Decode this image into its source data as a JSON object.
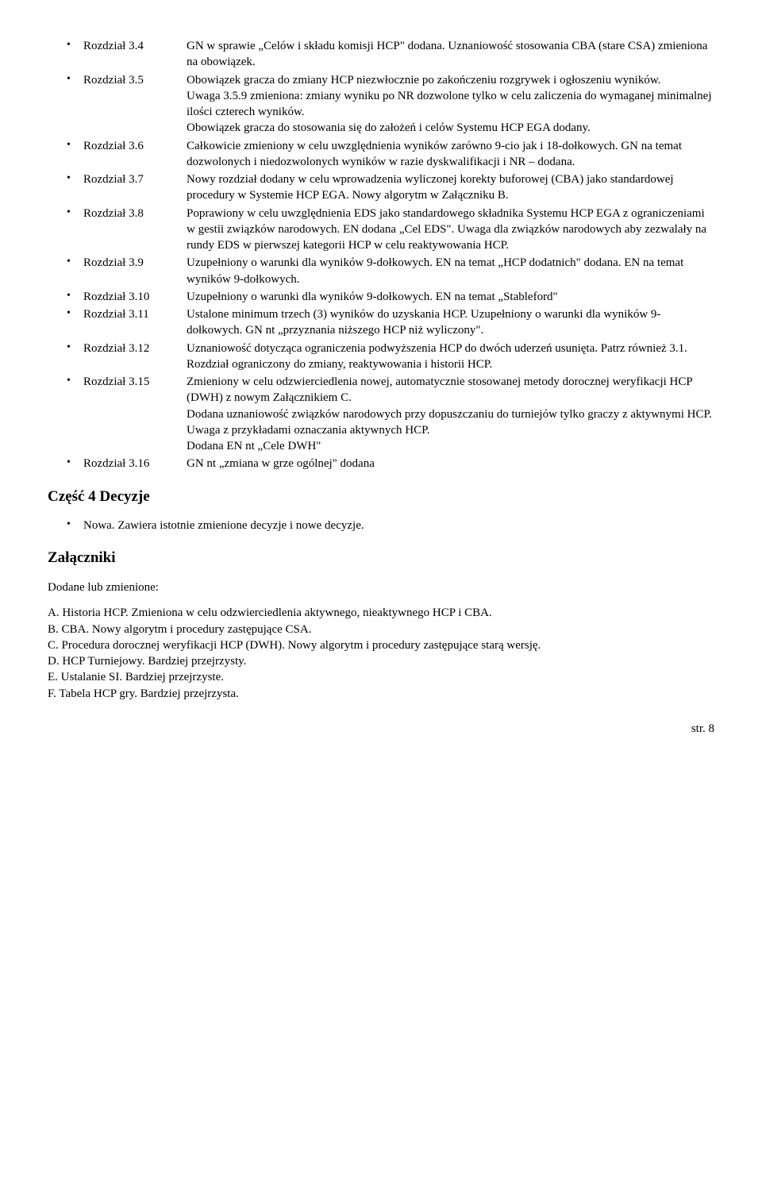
{
  "rozdzialItems": [
    {
      "label": "Rozdział 3.4",
      "text": "GN w sprawie „Celów i składu komisji HCP\" dodana. Uznaniowość stosowania CBA (stare CSA) zmieniona na obowiązek."
    },
    {
      "label": "Rozdział 3.5",
      "text": "Obowiązek gracza do zmiany HCP niezwłocznie po zakończeniu rozgrywek i ogłoszeniu wyników.\nUwaga 3.5.9 zmieniona: zmiany wyniku po NR dozwolone tylko w celu zaliczenia do wymaganej minimalnej ilości czterech wyników.\nObowiązek gracza do stosowania się do założeń i celów Systemu HCP EGA dodany."
    },
    {
      "label": "Rozdział 3.6",
      "text": "Całkowicie zmieniony w celu uwzględnienia wyników zarówno 9-cio jak i 18-dołkowych. GN na temat dozwolonych i niedozwolonych wyników w razie dyskwalifikacji i NR – dodana."
    },
    {
      "label": "Rozdział 3.7",
      "text": "Nowy rozdział dodany w celu wprowadzenia wyliczonej korekty buforowej (CBA) jako standardowej procedury w Systemie HCP EGA. Nowy algorytm w Załączniku B."
    },
    {
      "label": "Rozdział 3.8",
      "text": "Poprawiony w celu uwzględnienia EDS jako standardowego składnika Systemu HCP EGA z ograniczeniami w gestii związków narodowych. EN dodana „Cel EDS\". Uwaga dla związków narodowych aby zezwalały na rundy EDS w pierwszej kategorii HCP w celu reaktywowania HCP."
    },
    {
      "label": "Rozdział 3.9",
      "text": "Uzupełniony o warunki dla wyników 9-dołkowych. EN na temat „HCP dodatnich\" dodana. EN na temat wyników 9-dołkowych."
    },
    {
      "label": "Rozdział 3.10",
      "text": "Uzupełniony o warunki dla wyników 9-dołkowych. EN na temat „Stableford\""
    },
    {
      "label": "Rozdział 3.11",
      "text": "Ustalone minimum trzech (3) wyników do uzyskania HCP. Uzupełniony o warunki dla wyników 9-dołkowych. GN nt „przyznania niższego HCP niż wyliczony\"."
    },
    {
      "label": "Rozdział 3.12",
      "text": "Uznaniowość dotycząca ograniczenia podwyższenia HCP do dwóch uderzeń usunięta. Patrz również 3.1. Rozdział ograniczony do zmiany, reaktywowania i historii HCP."
    },
    {
      "label": "Rozdział 3.15",
      "text": "Zmieniony w celu odzwierciedlenia nowej, automatycznie stosowanej metody dorocznej weryfikacji HCP (DWH) z nowym Załącznikiem C.\nDodana uznaniowość związków narodowych przy dopuszczaniu do turniejów tylko graczy z aktywnymi HCP.\nUwaga z przykładami oznaczania aktywnych HCP.\nDodana EN nt „Cele DWH\""
    },
    {
      "label": "Rozdział 3.16",
      "text": "GN nt „zmiana w grze ogólnej\" dodana"
    }
  ],
  "section4Heading": "Część 4 Decyzje",
  "section4Item": "Nowa. Zawiera istotnie zmienione decyzje i nowe decyzje.",
  "attachmentsHeading": "Załączniki",
  "attachmentsIntro": "Dodane lub zmienione:",
  "attachmentItems": [
    {
      "letter": "A.",
      "text": "Historia HCP. Zmieniona w celu odzwierciedlenia aktywnego, nieaktywnego HCP i CBA."
    },
    {
      "letter": "B.",
      "text": "CBA. Nowy algorytm i procedury zastępujące CSA."
    },
    {
      "letter": "C.",
      "text": "Procedura dorocznej weryfikacji HCP (DWH). Nowy algorytm i procedury zastępujące starą wersję."
    },
    {
      "letter": "D.",
      "text": "HCP Turniejowy. Bardziej przejrzysty."
    },
    {
      "letter": "E.",
      "text": "Ustalanie SI. Bardziej przejrzyste."
    },
    {
      "letter": "F.",
      "text": "Tabela HCP gry. Bardziej przejrzysta."
    }
  ],
  "pageFooter": "str. 8"
}
